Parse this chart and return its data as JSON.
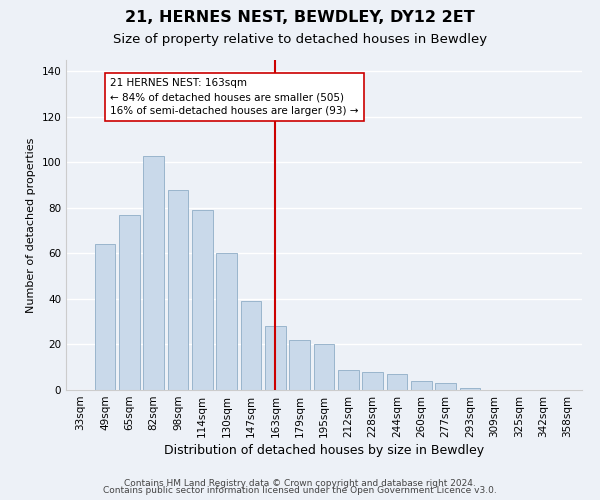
{
  "title": "21, HERNES NEST, BEWDLEY, DY12 2ET",
  "subtitle": "Size of property relative to detached houses in Bewdley",
  "xlabel": "Distribution of detached houses by size in Bewdley",
  "ylabel": "Number of detached properties",
  "bar_labels": [
    "33sqm",
    "49sqm",
    "65sqm",
    "82sqm",
    "98sqm",
    "114sqm",
    "130sqm",
    "147sqm",
    "163sqm",
    "179sqm",
    "195sqm",
    "212sqm",
    "228sqm",
    "244sqm",
    "260sqm",
    "277sqm",
    "293sqm",
    "309sqm",
    "325sqm",
    "342sqm",
    "358sqm"
  ],
  "bar_values": [
    0,
    64,
    77,
    103,
    88,
    79,
    60,
    39,
    28,
    22,
    20,
    9,
    8,
    7,
    4,
    3,
    1,
    0,
    0,
    0,
    0
  ],
  "bar_color": "#c9d9ea",
  "bar_edge_color": "#9ab5cc",
  "vline_x": 8,
  "vline_color": "#cc0000",
  "annotation_text": "21 HERNES NEST: 163sqm\n← 84% of detached houses are smaller (505)\n16% of semi-detached houses are larger (93) →",
  "annotation_box_color": "#ffffff",
  "annotation_box_edge": "#cc0000",
  "ylim": [
    0,
    145
  ],
  "yticks": [
    0,
    20,
    40,
    60,
    80,
    100,
    120,
    140
  ],
  "footer1": "Contains HM Land Registry data © Crown copyright and database right 2024.",
  "footer2": "Contains public sector information licensed under the Open Government Licence v3.0.",
  "background_color": "#edf1f7",
  "grid_color": "#ffffff",
  "title_fontsize": 11.5,
  "subtitle_fontsize": 9.5,
  "xlabel_fontsize": 9,
  "ylabel_fontsize": 8,
  "tick_fontsize": 7.5,
  "annotation_fontsize": 7.5,
  "footer_fontsize": 6.5
}
